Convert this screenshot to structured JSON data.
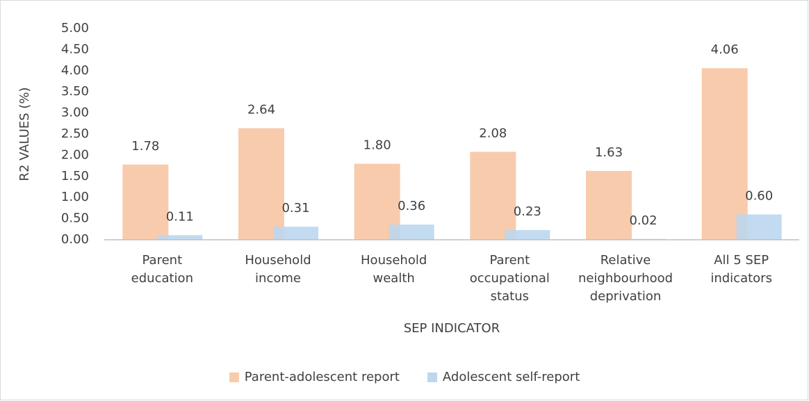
{
  "chart_data": {
    "type": "bar",
    "y_label": "R2 VALUES (%)",
    "x_label": "SEP INDICATOR",
    "categories": [
      "Parent education",
      "Household income",
      "Household wealth",
      "Parent occupational status",
      "Relative neighbourhood deprivation",
      "All 5 SEP indicators"
    ],
    "series": [
      {
        "name": "Parent-adolescent report",
        "color": "#f8cbad",
        "values": [
          1.78,
          2.64,
          1.8,
          2.08,
          1.63,
          4.06
        ],
        "value_labels": [
          "1.78",
          "2.64",
          "1.80",
          "2.08",
          "1.63",
          "4.06"
        ]
      },
      {
        "name": "Adolescent self-report",
        "color": "#bdd7ee",
        "values": [
          0.11,
          0.31,
          0.36,
          0.23,
          0.02,
          0.6
        ],
        "value_labels": [
          "0.11",
          "0.31",
          "0.36",
          "0.23",
          "0.02",
          "0.60"
        ]
      }
    ],
    "ylim": [
      0,
      5
    ],
    "yticks": [
      {
        "value": 0,
        "label": "0.00"
      },
      {
        "value": 0.5,
        "label": "0.50"
      },
      {
        "value": 1,
        "label": "1.00"
      },
      {
        "value": 1.5,
        "label": "1.50"
      },
      {
        "value": 2,
        "label": "2.00"
      },
      {
        "value": 2.5,
        "label": "2.50"
      },
      {
        "value": 3,
        "label": "3.00"
      },
      {
        "value": 3.5,
        "label": "3.50"
      },
      {
        "value": 4,
        "label": "4.00"
      },
      {
        "value": 4.5,
        "label": "4.50"
      },
      {
        "value": 5,
        "label": "5.00"
      }
    ],
    "grid": false,
    "legend": "bottom"
  }
}
